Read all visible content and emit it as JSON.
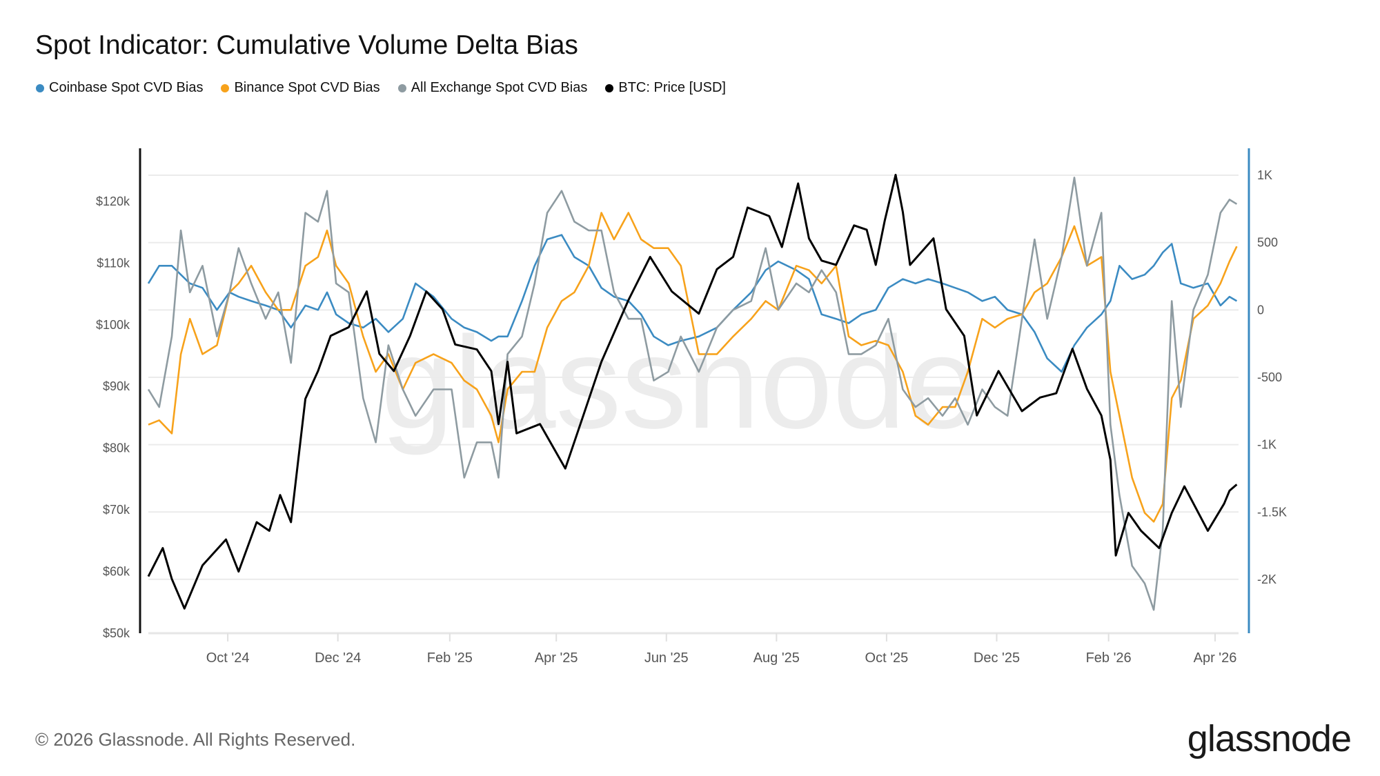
{
  "chart_data": {
    "type": "line",
    "title": "Spot Indicator: Cumulative Volume Delta Bias",
    "legend_position": "top-left",
    "grid": true,
    "xlim": [
      "2024-08-18",
      "2026-04-14"
    ],
    "x_ticks": [
      {
        "date": "2024-10-01",
        "label": "Oct '24"
      },
      {
        "date": "2024-12-01",
        "label": "Dec '24"
      },
      {
        "date": "2025-02-01",
        "label": "Feb '25"
      },
      {
        "date": "2025-04-01",
        "label": "Apr '25"
      },
      {
        "date": "2025-06-01",
        "label": "Jun '25"
      },
      {
        "date": "2025-08-01",
        "label": "Aug '25"
      },
      {
        "date": "2025-10-01",
        "label": "Oct '25"
      },
      {
        "date": "2025-12-01",
        "label": "Dec '25"
      },
      {
        "date": "2026-02-01",
        "label": "Feb '26"
      },
      {
        "date": "2026-04-01",
        "label": "Apr '26"
      }
    ],
    "y_left": {
      "ylim": [
        50000,
        128600
      ],
      "ticks": [
        50000,
        60000,
        70000,
        80000,
        90000,
        100000,
        110000,
        120000
      ],
      "tick_labels": [
        "$50k",
        "$60k",
        "$70k",
        "$80k",
        "$90k",
        "$100k",
        "$110k",
        "$120k"
      ]
    },
    "y_right": {
      "ylim": [
        -2400,
        1200
      ],
      "ticks": [
        -2000,
        -1500,
        -1000,
        -500,
        0,
        500,
        1000
      ],
      "tick_labels": [
        "-2K",
        "-1.5K",
        "-1K",
        "-500",
        "0",
        "500",
        "1K"
      ]
    },
    "cvd_dates": [
      "2024-08-18",
      "2024-08-24",
      "2024-08-31",
      "2024-09-05",
      "2024-09-10",
      "2024-09-17",
      "2024-09-25",
      "2024-10-02",
      "2024-10-07",
      "2024-10-14",
      "2024-10-22",
      "2024-10-29",
      "2024-11-05",
      "2024-11-13",
      "2024-11-20",
      "2024-11-25",
      "2024-11-30",
      "2024-12-07",
      "2024-12-15",
      "2024-12-22",
      "2024-12-29",
      "2025-01-06",
      "2025-01-13",
      "2025-01-23",
      "2025-02-02",
      "2025-02-09",
      "2025-02-16",
      "2025-02-24",
      "2025-02-28",
      "2025-03-05",
      "2025-03-13",
      "2025-03-20",
      "2025-03-27",
      "2025-04-04",
      "2025-04-11",
      "2025-04-19",
      "2025-04-26",
      "2025-05-03",
      "2025-05-11",
      "2025-05-18",
      "2025-05-25",
      "2025-06-02",
      "2025-06-09",
      "2025-06-19",
      "2025-06-29",
      "2025-07-08",
      "2025-07-18",
      "2025-07-26",
      "2025-08-02",
      "2025-08-12",
      "2025-08-19",
      "2025-08-26",
      "2025-09-03",
      "2025-09-10",
      "2025-09-17",
      "2025-09-25",
      "2025-10-02",
      "2025-10-10",
      "2025-10-17",
      "2025-10-24",
      "2025-11-01",
      "2025-11-08",
      "2025-11-15",
      "2025-11-23",
      "2025-11-30",
      "2025-12-07",
      "2025-12-15",
      "2025-12-22",
      "2025-12-29",
      "2026-01-06",
      "2026-01-13",
      "2026-01-20",
      "2026-01-28",
      "2026-02-02",
      "2026-02-07",
      "2026-02-14",
      "2026-02-21",
      "2026-02-26",
      "2026-03-03",
      "2026-03-08",
      "2026-03-13",
      "2026-03-20",
      "2026-03-28",
      "2026-04-04",
      "2026-04-09",
      "2026-04-13"
    ],
    "series": [
      {
        "name": "Coinbase Spot CVD Bias",
        "axis": "right",
        "color": "#3b8bc2",
        "values": [
          197,
          328,
          328,
          262,
          197,
          164,
          0,
          131,
          98,
          66,
          33,
          0,
          -131,
          33,
          0,
          131,
          -33,
          -98,
          -131,
          -66,
          -164,
          -66,
          197,
          98,
          -66,
          -131,
          -164,
          -229,
          -197,
          -197,
          66,
          328,
          524,
          557,
          393,
          328,
          164,
          98,
          66,
          -33,
          -197,
          -262,
          -229,
          -197,
          -131,
          0,
          131,
          295,
          360,
          295,
          229,
          -33,
          -66,
          -98,
          -33,
          0,
          164,
          229,
          197,
          229,
          197,
          164,
          131,
          66,
          98,
          0,
          -33,
          -164,
          -360,
          -459,
          -262,
          -131,
          -33,
          66,
          328,
          229,
          262,
          328,
          426,
          491,
          197,
          164,
          197,
          33,
          98,
          66
        ]
      },
      {
        "name": "Binance Spot CVD Bias",
        "axis": "right",
        "color": "#f7a21b",
        "values": [
          -852,
          -819,
          -917,
          -328,
          -66,
          -328,
          -262,
          131,
          197,
          328,
          131,
          0,
          0,
          328,
          393,
          590,
          328,
          197,
          -197,
          -459,
          -328,
          -590,
          -393,
          -328,
          -393,
          -524,
          -590,
          -786,
          -983,
          -590,
          -459,
          -459,
          -131,
          66,
          131,
          328,
          721,
          524,
          721,
          524,
          459,
          459,
          328,
          -328,
          -328,
          -197,
          -66,
          66,
          0,
          328,
          295,
          197,
          328,
          -197,
          -262,
          -229,
          -262,
          -459,
          -786,
          -852,
          -721,
          -721,
          -459,
          -66,
          -131,
          -66,
          -33,
          131,
          197,
          393,
          622,
          328,
          393,
          -459,
          -786,
          -1245,
          -1507,
          -1572,
          -1441,
          -655,
          -524,
          -66,
          33,
          197,
          360,
          472
        ]
      },
      {
        "name": "All Exchange Spot CVD Bias",
        "axis": "right",
        "color": "#8e9ba1",
        "values": [
          -590,
          -721,
          -197,
          590,
          131,
          328,
          -197,
          131,
          459,
          197,
          -66,
          131,
          -393,
          721,
          655,
          884,
          197,
          131,
          -655,
          -983,
          -262,
          -590,
          -786,
          -590,
          -590,
          -1245,
          -983,
          -983,
          -1245,
          -328,
          -197,
          197,
          721,
          884,
          655,
          590,
          590,
          131,
          -66,
          -66,
          -524,
          -459,
          -197,
          -459,
          -131,
          0,
          66,
          459,
          0,
          197,
          131,
          295,
          131,
          -328,
          -328,
          -262,
          -66,
          -590,
          -721,
          -655,
          -786,
          -655,
          -852,
          -590,
          -721,
          -786,
          -66,
          524,
          -66,
          393,
          983,
          328,
          721,
          -852,
          -1376,
          -1900,
          -2031,
          -2227,
          -1638,
          66,
          -721,
          0,
          262,
          721,
          819,
          786
        ]
      },
      {
        "name": "BTC: Price [USD]",
        "axis": "left",
        "color": "#000000",
        "dates": [
          "2024-08-18",
          "2024-08-26",
          "2024-08-31",
          "2024-09-07",
          "2024-09-17",
          "2024-09-30",
          "2024-10-07",
          "2024-10-17",
          "2024-10-24",
          "2024-10-30",
          "2024-11-05",
          "2024-11-13",
          "2024-11-20",
          "2024-11-27",
          "2024-12-07",
          "2024-12-17",
          "2024-12-24",
          "2025-01-01",
          "2025-01-10",
          "2025-01-19",
          "2025-01-28",
          "2025-02-04",
          "2025-02-16",
          "2025-02-24",
          "2025-02-28",
          "2025-03-05",
          "2025-03-10",
          "2025-03-23",
          "2025-04-06",
          "2025-04-16",
          "2025-04-26",
          "2025-05-11",
          "2025-05-23",
          "2025-06-04",
          "2025-06-19",
          "2025-06-29",
          "2025-07-08",
          "2025-07-16",
          "2025-07-28",
          "2025-08-04",
          "2025-08-13",
          "2025-08-19",
          "2025-08-26",
          "2025-09-03",
          "2025-09-13",
          "2025-09-20",
          "2025-09-25",
          "2025-09-30",
          "2025-10-06",
          "2025-10-10",
          "2025-10-14",
          "2025-10-27",
          "2025-11-03",
          "2025-11-13",
          "2025-11-20",
          "2025-12-02",
          "2025-12-15",
          "2025-12-25",
          "2026-01-03",
          "2026-01-12",
          "2026-01-20",
          "2026-01-28",
          "2026-02-02",
          "2026-02-05",
          "2026-02-12",
          "2026-02-19",
          "2026-03-01",
          "2026-03-08",
          "2026-03-15",
          "2026-03-28",
          "2026-04-06",
          "2026-04-09",
          "2026-04-13"
        ],
        "values": [
          59200,
          63800,
          58800,
          54000,
          61000,
          65200,
          60000,
          68000,
          66600,
          72400,
          68000,
          88000,
          92500,
          98200,
          99600,
          105400,
          95300,
          92500,
          98200,
          105400,
          102500,
          96800,
          96000,
          92500,
          83900,
          94000,
          82400,
          83900,
          76700,
          85300,
          94000,
          104000,
          111000,
          105400,
          101800,
          109000,
          111000,
          119000,
          117600,
          112600,
          122900,
          114000,
          110400,
          109700,
          116100,
          115400,
          109700,
          116900,
          124300,
          118300,
          109700,
          114000,
          102500,
          98200,
          85300,
          92500,
          86000,
          88200,
          88900,
          96100,
          89600,
          85300,
          78100,
          62600,
          69500,
          66600,
          63800,
          69500,
          73800,
          66600,
          71000,
          73100,
          74100
        ]
      }
    ]
  },
  "watermark": "glassnode",
  "footer": {
    "copyright": "© 2026 Glassnode. All Rights Reserved.",
    "logo": "glassnode"
  }
}
